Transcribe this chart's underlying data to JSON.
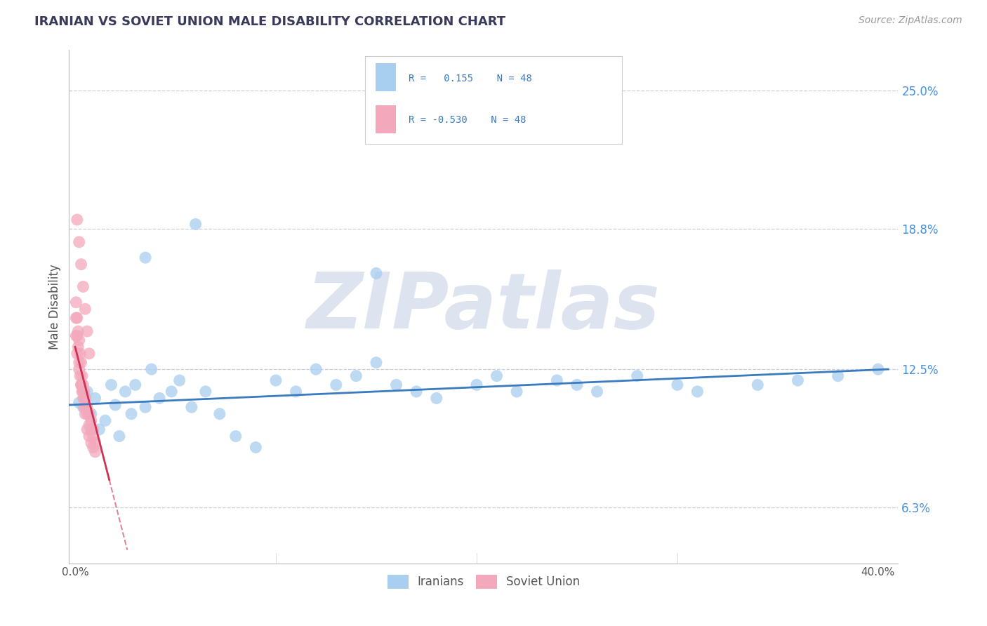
{
  "title": "IRANIAN VS SOVIET UNION MALE DISABILITY CORRELATION CHART",
  "source": "Source: ZipAtlas.com",
  "ylabel": "Male Disability",
  "y_tick_labels": [
    "6.3%",
    "12.5%",
    "18.8%",
    "25.0%"
  ],
  "y_ticks": [
    0.063,
    0.125,
    0.188,
    0.25
  ],
  "xlim": [
    -0.003,
    0.41
  ],
  "ylim": [
    0.038,
    0.268
  ],
  "iranian_R": 0.155,
  "iranian_N": 48,
  "soviet_R": -0.53,
  "soviet_N": 48,
  "legend_labels": [
    "Iranians",
    "Soviet Union"
  ],
  "iranian_color": "#a8cef0",
  "soviet_color": "#f4a8bc",
  "iranian_line_color": "#3a7abf",
  "soviet_line_color": "#cc3355",
  "background_color": "#ffffff",
  "grid_color": "#ccccdd",
  "title_color": "#3a3a5c",
  "watermark": "ZIPatlas",
  "watermark_color": "#dde4f0",
  "iranian_x": [
    0.002,
    0.004,
    0.006,
    0.008,
    0.01,
    0.012,
    0.015,
    0.018,
    0.02,
    0.022,
    0.025,
    0.028,
    0.03,
    0.035,
    0.038,
    0.042,
    0.048,
    0.052,
    0.058,
    0.065,
    0.072,
    0.08,
    0.09,
    0.1,
    0.11,
    0.12,
    0.13,
    0.14,
    0.15,
    0.16,
    0.17,
    0.18,
    0.2,
    0.21,
    0.22,
    0.24,
    0.25,
    0.26,
    0.28,
    0.3,
    0.31,
    0.34,
    0.36,
    0.38,
    0.4,
    0.06,
    0.035,
    0.15
  ],
  "iranian_y": [
    0.11,
    0.108,
    0.115,
    0.105,
    0.112,
    0.098,
    0.102,
    0.118,
    0.109,
    0.095,
    0.115,
    0.105,
    0.118,
    0.108,
    0.125,
    0.112,
    0.115,
    0.12,
    0.108,
    0.115,
    0.105,
    0.095,
    0.09,
    0.12,
    0.115,
    0.125,
    0.118,
    0.122,
    0.128,
    0.118,
    0.115,
    0.112,
    0.118,
    0.122,
    0.115,
    0.12,
    0.118,
    0.115,
    0.122,
    0.118,
    0.115,
    0.118,
    0.12,
    0.122,
    0.125,
    0.19,
    0.175,
    0.168
  ],
  "soviet_x": [
    0.0005,
    0.001,
    0.0015,
    0.002,
    0.0025,
    0.003,
    0.0035,
    0.004,
    0.0045,
    0.005,
    0.0055,
    0.006,
    0.007,
    0.008,
    0.009,
    0.01,
    0.0005,
    0.001,
    0.0015,
    0.002,
    0.0025,
    0.003,
    0.0035,
    0.004,
    0.0045,
    0.005,
    0.006,
    0.007,
    0.008,
    0.009,
    0.0005,
    0.001,
    0.002,
    0.003,
    0.004,
    0.005,
    0.006,
    0.007,
    0.008,
    0.009,
    0.001,
    0.002,
    0.003,
    0.004,
    0.005,
    0.006,
    0.007,
    0.01
  ],
  "soviet_y": [
    0.155,
    0.148,
    0.142,
    0.138,
    0.132,
    0.128,
    0.122,
    0.118,
    0.115,
    0.112,
    0.108,
    0.105,
    0.1,
    0.098,
    0.095,
    0.092,
    0.148,
    0.14,
    0.135,
    0.128,
    0.122,
    0.118,
    0.115,
    0.112,
    0.108,
    0.105,
    0.098,
    0.095,
    0.092,
    0.09,
    0.14,
    0.132,
    0.125,
    0.118,
    0.115,
    0.112,
    0.108,
    0.105,
    0.102,
    0.098,
    0.192,
    0.182,
    0.172,
    0.162,
    0.152,
    0.142,
    0.132,
    0.088
  ]
}
